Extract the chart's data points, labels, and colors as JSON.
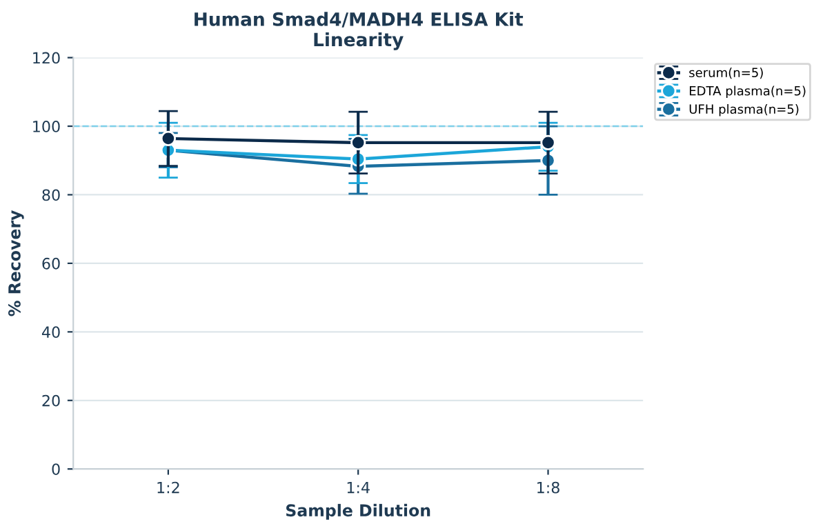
{
  "chart_data": {
    "type": "line",
    "title": "Human Smad4/MADH4 ELISA Kit\nLinearity",
    "xlabel": "Sample Dilution",
    "ylabel": "% Recovery",
    "categories": [
      "1:2",
      "1:4",
      "1:8"
    ],
    "series": [
      {
        "name": "serum(n=5)",
        "color": "#0b2a4a",
        "values": [
          96.4,
          95.2,
          95.2
        ],
        "errors": [
          8,
          9,
          9
        ]
      },
      {
        "name": "EDTA plasma(n=5)",
        "color": "#1ca6d9",
        "values": [
          93,
          90.4,
          94
        ],
        "errors": [
          8,
          7,
          7
        ]
      },
      {
        "name": "UFH plasma(n=5)",
        "color": "#1a6f9f",
        "values": [
          93,
          88.3,
          90
        ],
        "errors": [
          5,
          8,
          10
        ]
      }
    ],
    "ylim": [
      0,
      120
    ],
    "yticks": [
      0,
      20,
      40,
      60,
      80,
      100,
      120
    ],
    "grid": "y",
    "legend": "top right",
    "marker": "circle",
    "line_style": "solid",
    "ref_lines": [
      {
        "axis": "y",
        "value": 100,
        "color": "#7fd0ea",
        "line_style": "dashed"
      }
    ]
  }
}
